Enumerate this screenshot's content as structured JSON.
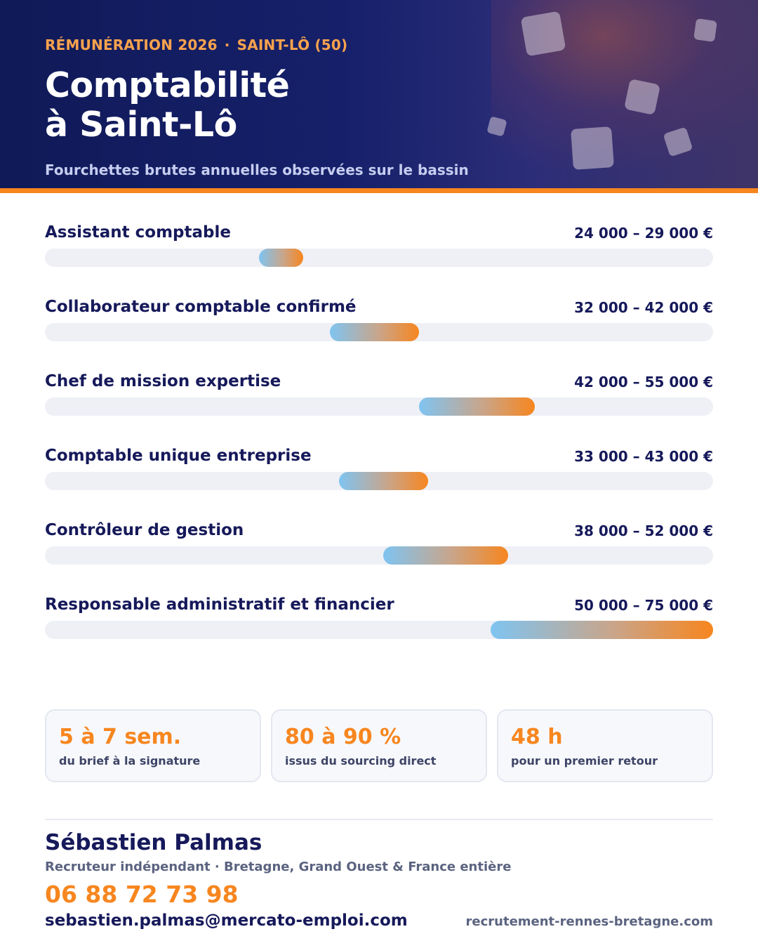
{
  "header": {
    "kicker_left": "RÉMUNÉRATION 2026",
    "kicker_separator": "·",
    "kicker_right": "SAINT-LÔ (50)",
    "title_line1": "Comptabilité",
    "title_line2": "à Saint-Lô",
    "subtitle": "Fourchettes brutes annuelles observées sur le bassin"
  },
  "colors": {
    "header_bg": "#141e62",
    "accent": "#f7861f",
    "gradient_start": "#7fc4f1",
    "text_dark": "#16195a"
  },
  "salary_rows": [
    {
      "label": "Assistant comptable",
      "range_text": "24 000 – 29 000 €",
      "min": 24000,
      "max": 29000
    },
    {
      "label": "Collaborateur comptable confirmé",
      "range_text": "32 000 – 42 000 €",
      "min": 32000,
      "max": 42000
    },
    {
      "label": "Chef de mission expertise",
      "range_text": "42 000 – 55 000 €",
      "min": 42000,
      "max": 55000
    },
    {
      "label": "Comptable unique entreprise",
      "range_text": "33 000 – 43 000 €",
      "min": 33000,
      "max": 43000
    },
    {
      "label": "Contrôleur de gestion",
      "range_text": "38 000 – 52 000 €",
      "min": 38000,
      "max": 52000
    },
    {
      "label": "Responsable administratif et financier",
      "range_text": "50 000 – 75 000 €",
      "min": 50000,
      "max": 75000
    }
  ],
  "stats": [
    {
      "value": "5 à 7 sem.",
      "caption": "du brief à la signature"
    },
    {
      "value": "80 à 90 %",
      "caption": "issus du sourcing direct"
    },
    {
      "value": "48 h",
      "caption": "pour un premier retour"
    }
  ],
  "contact": {
    "name": "Sébastien Palmas",
    "role": "Recruteur indépendant · Bretagne, Grand Ouest & France entière",
    "phone": "06 88 72 73 98",
    "email": "sebastien.palmas@mercato-emploi.com",
    "website": "recrutement-rennes-bretagne.com"
  }
}
